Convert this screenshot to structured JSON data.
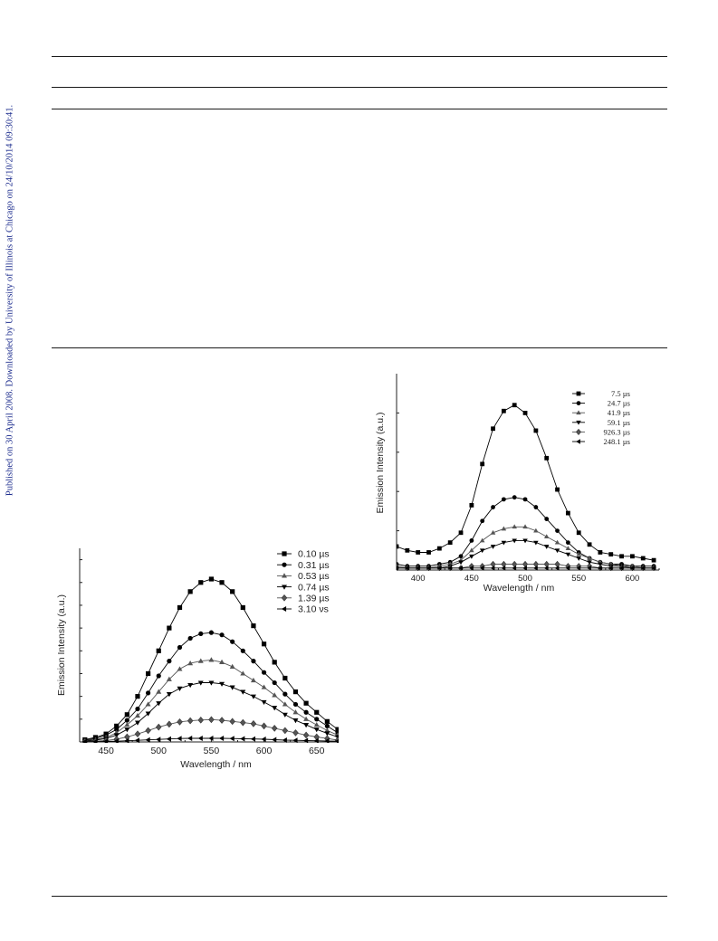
{
  "sidebar": {
    "text": "Published on 30 April 2008. Downloaded by University of Illinois at Chicago on 24/10/2014 09:30:41."
  },
  "colors": {
    "sidebar_text": "#1f2f8f",
    "rules": "#1a1a1a",
    "series_dark": "#000000",
    "series_grey": "#555555"
  },
  "figures": [
    {
      "xlabel": "Wavelength / nm",
      "ylabel": "Emission Intensity (a.u.)",
      "xticks": [
        "450",
        "500",
        "550",
        "600",
        "650"
      ],
      "legend": [
        "0.10 µs",
        "0.31 µs",
        "0.53 µs",
        "0.74 µs",
        "1.39 µs",
        "3.10 νs"
      ]
    },
    {
      "xlabel": "Wavelength / nm",
      "ylabel": "Emission Intensity (a.u.)",
      "xticks": [
        "400",
        "450",
        "500",
        "550",
        "600"
      ],
      "legend": [
        "7.5  µs",
        "24.7  µs",
        "41.9  µs",
        "59.1  µs",
        "926.3  µs",
        "248.1  µs"
      ]
    }
  ],
  "chart_data": [
    {
      "type": "line",
      "xlabel": "Wavelength / nm",
      "ylabel": "Emission Intensity (a.u.)",
      "xlim": [
        425,
        670
      ],
      "ylim": [
        0,
        8.5
      ],
      "x": [
        430,
        440,
        450,
        460,
        470,
        480,
        490,
        500,
        510,
        520,
        530,
        540,
        550,
        560,
        570,
        580,
        590,
        600,
        610,
        620,
        630,
        640,
        650,
        660,
        670
      ],
      "series": [
        {
          "name": "0.10 µs",
          "marker": "square",
          "color": "#000000",
          "values": [
            0.1,
            0.2,
            0.35,
            0.7,
            1.2,
            2.0,
            3.0,
            4.0,
            5.0,
            5.9,
            6.6,
            7.0,
            7.15,
            7.0,
            6.6,
            5.9,
            5.1,
            4.3,
            3.5,
            2.8,
            2.2,
            1.7,
            1.3,
            0.9,
            0.55
          ]
        },
        {
          "name": "0.31 µs",
          "marker": "circle",
          "color": "#000000",
          "values": [
            0.07,
            0.15,
            0.3,
            0.55,
            0.95,
            1.45,
            2.15,
            2.9,
            3.55,
            4.15,
            4.55,
            4.75,
            4.8,
            4.7,
            4.4,
            4.0,
            3.55,
            3.05,
            2.6,
            2.1,
            1.65,
            1.3,
            1.0,
            0.7,
            0.4
          ]
        },
        {
          "name": "0.53 µs",
          "marker": "triangle-up",
          "color": "#555555",
          "values": [
            0.05,
            0.1,
            0.2,
            0.4,
            0.75,
            1.15,
            1.65,
            2.2,
            2.75,
            3.2,
            3.45,
            3.55,
            3.6,
            3.5,
            3.3,
            3.0,
            2.7,
            2.4,
            2.05,
            1.65,
            1.3,
            1.0,
            0.75,
            0.5,
            0.3
          ]
        },
        {
          "name": "0.74 µs",
          "marker": "triangle-down",
          "color": "#000000",
          "values": [
            0.04,
            0.08,
            0.15,
            0.3,
            0.55,
            0.85,
            1.25,
            1.7,
            2.1,
            2.35,
            2.5,
            2.6,
            2.6,
            2.55,
            2.4,
            2.2,
            2.0,
            1.75,
            1.5,
            1.2,
            0.95,
            0.75,
            0.55,
            0.38,
            0.22
          ]
        },
        {
          "name": "1.39 µs",
          "marker": "diamond",
          "color": "#555555",
          "values": [
            0.02,
            0.03,
            0.06,
            0.12,
            0.22,
            0.35,
            0.5,
            0.65,
            0.78,
            0.88,
            0.93,
            0.96,
            0.98,
            0.95,
            0.9,
            0.85,
            0.8,
            0.7,
            0.6,
            0.5,
            0.4,
            0.3,
            0.22,
            0.15,
            0.08
          ]
        },
        {
          "name": "3.10 νs",
          "marker": "triangle-left",
          "color": "#000000",
          "values": [
            0.01,
            0.01,
            0.02,
            0.03,
            0.05,
            0.07,
            0.09,
            0.11,
            0.13,
            0.15,
            0.16,
            0.16,
            0.16,
            0.16,
            0.15,
            0.14,
            0.13,
            0.12,
            0.1,
            0.08,
            0.07,
            0.06,
            0.05,
            0.04,
            0.03
          ]
        }
      ]
    },
    {
      "type": "line",
      "xlabel": "Wavelength / nm",
      "ylabel": "Emission Intensity (a.u.)",
      "xlim": [
        380,
        625
      ],
      "ylim": [
        0,
        100
      ],
      "x": [
        380,
        390,
        400,
        410,
        420,
        430,
        440,
        450,
        460,
        470,
        480,
        490,
        500,
        510,
        520,
        530,
        540,
        550,
        560,
        570,
        580,
        590,
        600,
        610,
        620
      ],
      "series": [
        {
          "name": "7.5  µs",
          "marker": "square",
          "color": "#000000",
          "values": [
            12,
            10,
            9,
            9,
            11,
            14,
            19,
            33,
            54,
            72,
            81,
            84,
            80,
            71,
            57,
            41,
            29,
            19,
            13,
            9,
            8,
            7,
            7,
            6,
            5
          ]
        },
        {
          "name": "24.7  µs",
          "marker": "circle",
          "color": "#000000",
          "values": [
            3,
            2,
            2,
            2,
            3,
            4,
            7,
            15,
            25,
            32,
            36,
            37,
            36,
            32,
            26,
            20,
            14,
            9,
            6,
            4,
            3,
            3,
            2,
            2,
            2
          ]
        },
        {
          "name": "41.9  µs",
          "marker": "triangle-up",
          "color": "#555555",
          "values": [
            2,
            1,
            1,
            1,
            2,
            3,
            5,
            10,
            15,
            19,
            21,
            22,
            22,
            20,
            17,
            14,
            11,
            8,
            6,
            4,
            3,
            2,
            2,
            1,
            1
          ]
        },
        {
          "name": "59.1  µs",
          "marker": "triangle-down",
          "color": "#000000",
          "values": [
            1,
            1,
            1,
            1,
            1,
            2,
            4,
            7,
            10,
            12,
            14,
            15,
            15,
            14,
            12,
            10,
            8,
            6,
            4,
            3,
            2,
            2,
            1,
            1,
            1
          ]
        },
        {
          "name": "926.3  µs",
          "marker": "diamond",
          "color": "#555555",
          "values": [
            1,
            1,
            1,
            1,
            1,
            1,
            1,
            2,
            2,
            3,
            3,
            3,
            3,
            3,
            3,
            3,
            2,
            2,
            2,
            1,
            1,
            1,
            1,
            1,
            1
          ]
        },
        {
          "name": "248.1  µs",
          "marker": "triangle-left",
          "color": "#000000",
          "values": [
            1,
            1,
            1,
            1,
            1,
            1,
            1,
            1,
            1,
            1,
            1,
            1,
            1,
            1,
            1,
            1,
            1,
            1,
            1,
            1,
            1,
            1,
            1,
            1,
            1
          ]
        }
      ]
    }
  ]
}
